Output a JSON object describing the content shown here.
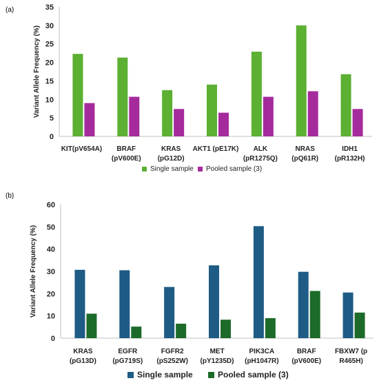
{
  "chart_data": [
    {
      "type": "bar",
      "panel_label": "(a)",
      "ylabel": "Variant Allele Frequency (%)",
      "ylim": [
        0,
        35
      ],
      "yticks": [
        0,
        5,
        10,
        15,
        20,
        25,
        30,
        35
      ],
      "grid": false,
      "legend_position": "bottom",
      "categories": [
        [
          "KIT(pV654A)"
        ],
        [
          "BRAF",
          "(pV600E)"
        ],
        [
          "KRAS",
          "(pG12D)"
        ],
        [
          "AKT1 (pE17K)"
        ],
        [
          "ALK",
          "(pR1275Q)"
        ],
        [
          "NRAS",
          "(pQ61R)"
        ],
        [
          "IDH1",
          "(pR132H)"
        ]
      ],
      "series": [
        {
          "name": "Single sample",
          "color": "#5cb032",
          "values": [
            22.3,
            21.3,
            12.5,
            14.0,
            22.9,
            30.0,
            16.8
          ]
        },
        {
          "name": "Pooled sample (3)",
          "color": "#a52b9d",
          "values": [
            9.0,
            10.7,
            7.4,
            6.4,
            10.7,
            12.2,
            7.4
          ]
        }
      ]
    },
    {
      "type": "bar",
      "panel_label": "(b)",
      "ylabel": "Variant Allele Frequency (%)",
      "ylim": [
        0,
        60
      ],
      "yticks": [
        0,
        10,
        20,
        30,
        40,
        50,
        60
      ],
      "grid": false,
      "legend_position": "bottom",
      "categories": [
        [
          "KRAS",
          "(pG13D)"
        ],
        [
          "EGFR",
          "(pG719S)"
        ],
        [
          "FGFR2",
          "(pS252W)"
        ],
        [
          "MET",
          "(pY1235D)"
        ],
        [
          "PIK3CA",
          "(pH1047R)"
        ],
        [
          "BRAF",
          "(pV600E)"
        ],
        [
          "FBXW7 (p",
          "R465H)"
        ]
      ],
      "series": [
        {
          "name": "Single sample",
          "color": "#1e5b85",
          "values": [
            30.7,
            30.5,
            23.0,
            32.7,
            50.3,
            29.8,
            20.5
          ]
        },
        {
          "name": "Pooled sample (3)",
          "color": "#1c6b2a",
          "values": [
            11.0,
            5.2,
            6.5,
            8.3,
            9.0,
            21.2,
            11.5
          ]
        }
      ]
    }
  ]
}
